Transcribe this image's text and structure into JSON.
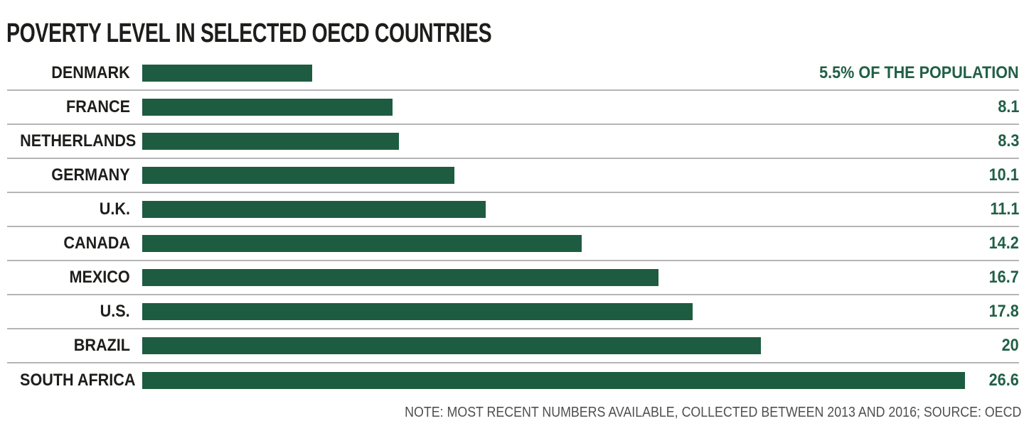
{
  "title": "POVERTY LEVEL IN SELECTED OECD COUNTRIES",
  "note": "NOTE: MOST RECENT NUMBERS AVAILABLE, COLLECTED BETWEEN 2013 AND 2016; SOURCE: OECD",
  "colors": {
    "bar": "#1e5c41",
    "value_text": "#215f46",
    "label_text": "#1d1d1b",
    "title_text": "#1d1d1b",
    "divider": "#b5b5b5",
    "note_text": "#4f4f4f",
    "background": "#ffffff"
  },
  "chart_data": {
    "type": "bar",
    "orientation": "horizontal",
    "title": "POVERTY LEVEL IN SELECTED OECD COUNTRIES",
    "xlabel": "",
    "ylabel": "",
    "unit": "% of the population",
    "xlim": [
      0,
      26.6
    ],
    "grid": false,
    "legend": false,
    "note": "NOTE: MOST RECENT NUMBERS AVAILABLE, COLLECTED BETWEEN 2013 AND 2016; SOURCE: OECD",
    "categories": [
      "DENMARK",
      "FRANCE",
      "NETHERLANDS",
      "GERMANY",
      "U.K.",
      "CANADA",
      "MEXICO",
      "U.S.",
      "BRAZIL",
      "SOUTH AFRICA"
    ],
    "values": [
      5.5,
      8.1,
      8.3,
      10.1,
      11.1,
      14.2,
      16.7,
      17.8,
      20,
      26.6
    ],
    "rows": [
      {
        "label": "DENMARK",
        "value": 5.5,
        "display": "5.5% OF THE POPULATION"
      },
      {
        "label": "FRANCE",
        "value": 8.1,
        "display": "8.1"
      },
      {
        "label": "NETHERLANDS",
        "value": 8.3,
        "display": "8.3"
      },
      {
        "label": "GERMANY",
        "value": 10.1,
        "display": "10.1"
      },
      {
        "label": "U.K.",
        "value": 11.1,
        "display": "11.1"
      },
      {
        "label": "CANADA",
        "value": 14.2,
        "display": "14.2"
      },
      {
        "label": "MEXICO",
        "value": 16.7,
        "display": "16.7"
      },
      {
        "label": "U.S.",
        "value": 17.8,
        "display": "17.8"
      },
      {
        "label": "BRAZIL",
        "value": 20,
        "display": "20"
      },
      {
        "label": "SOUTH AFRICA",
        "value": 26.6,
        "display": "26.6"
      }
    ]
  }
}
